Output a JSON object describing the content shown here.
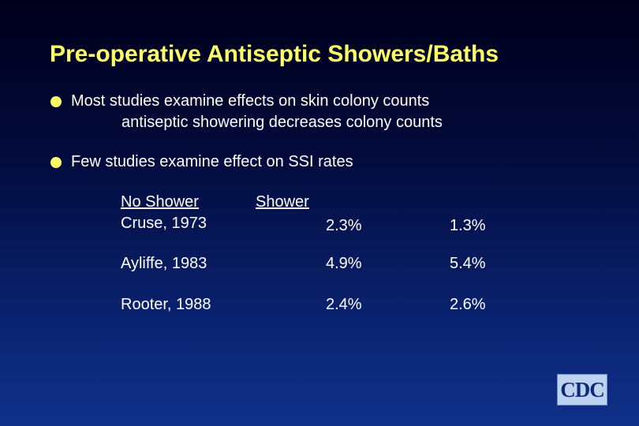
{
  "title": "Pre-operative Antiseptic Showers/Baths",
  "bullets": [
    {
      "text": "Most studies examine effects on skin colony counts",
      "sub": "antiseptic showering decreases colony counts"
    },
    {
      "text": "Few studies examine effect on SSI rates"
    }
  ],
  "table": {
    "headers": [
      "No Shower",
      "Shower"
    ],
    "rows": [
      {
        "study": "Cruse, 1973",
        "no_shower": "2.3%",
        "shower": "1.3%"
      },
      {
        "study": "Ayliffe, 1983",
        "no_shower": "4.9%",
        "shower": "5.4%"
      },
      {
        "study": "Rooter, 1988",
        "no_shower": "2.4%",
        "shower": "2.6%"
      }
    ]
  },
  "logo": {
    "text": "CDC"
  },
  "colors": {
    "title": "#ffff66",
    "bullet": "#ffff66",
    "text": "#ffffff",
    "background_top": "#00001a",
    "background_bottom": "#10308a"
  }
}
